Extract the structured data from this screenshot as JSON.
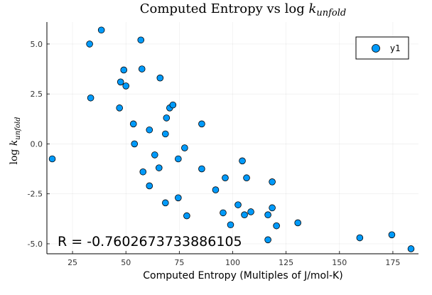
{
  "chart_data": {
    "type": "scatter",
    "title": "Computed Entropy vs log k_unfold",
    "title_parts": {
      "main": "Computed Entropy vs log ",
      "k": "k",
      "sub": "unfold"
    },
    "xlabel": "Computed Entropy (Multiples of J/mol-K)",
    "ylabel_parts": {
      "main": "log ",
      "k": "k",
      "sub": "unfold"
    },
    "xlim": [
      13,
      187
    ],
    "ylim": [
      -5.5,
      6.1
    ],
    "xticks": [
      25,
      50,
      75,
      100,
      125,
      150,
      175
    ],
    "yticks": [
      -5.0,
      -2.5,
      0.0,
      2.5,
      5.0
    ],
    "ytick_labels": [
      "-5.0",
      "-2.5",
      "0.0",
      "2.5",
      "5.0"
    ],
    "grid": true,
    "legend": {
      "position": "top-right",
      "entries": [
        "y1"
      ]
    },
    "series": [
      {
        "name": "y1",
        "color": "#009AFA",
        "points": [
          [
            15.5,
            -0.75
          ],
          [
            33,
            5.0
          ],
          [
            38.5,
            5.7
          ],
          [
            33.5,
            2.3
          ],
          [
            47.5,
            3.1
          ],
          [
            49,
            3.7
          ],
          [
            50,
            2.9
          ],
          [
            47,
            1.8
          ],
          [
            57,
            5.2
          ],
          [
            57.5,
            3.75
          ],
          [
            66,
            3.3
          ],
          [
            53.5,
            1.0
          ],
          [
            54,
            0.0
          ],
          [
            61,
            0.7
          ],
          [
            70.5,
            1.8
          ],
          [
            72,
            1.95
          ],
          [
            69,
            1.3
          ],
          [
            68.5,
            0.5
          ],
          [
            85.5,
            1.0
          ],
          [
            63.5,
            -0.55
          ],
          [
            58,
            -1.4
          ],
          [
            65.5,
            -1.2
          ],
          [
            74.5,
            -0.75
          ],
          [
            77.5,
            -0.2
          ],
          [
            61,
            -2.1
          ],
          [
            68.5,
            -2.95
          ],
          [
            74.5,
            -2.7
          ],
          [
            78.5,
            -3.6
          ],
          [
            85.5,
            -1.25
          ],
          [
            96.5,
            -1.7
          ],
          [
            92,
            -2.3
          ],
          [
            95.5,
            -3.45
          ],
          [
            99,
            -4.05
          ],
          [
            102.5,
            -3.05
          ],
          [
            104.5,
            -0.85
          ],
          [
            106.5,
            -1.7
          ],
          [
            105.5,
            -3.55
          ],
          [
            108.5,
            -3.4
          ],
          [
            118.5,
            -1.9
          ],
          [
            116.5,
            -3.55
          ],
          [
            118.5,
            -3.2
          ],
          [
            120.5,
            -4.1
          ],
          [
            116.5,
            -4.8
          ],
          [
            130.5,
            -3.95
          ],
          [
            159.5,
            -4.7
          ],
          [
            174.5,
            -4.55
          ],
          [
            183.5,
            -5.25
          ]
        ]
      }
    ],
    "annotations": [
      {
        "text": "R = -0.7602673733886105",
        "x": 18,
        "y": -5.1
      }
    ]
  }
}
